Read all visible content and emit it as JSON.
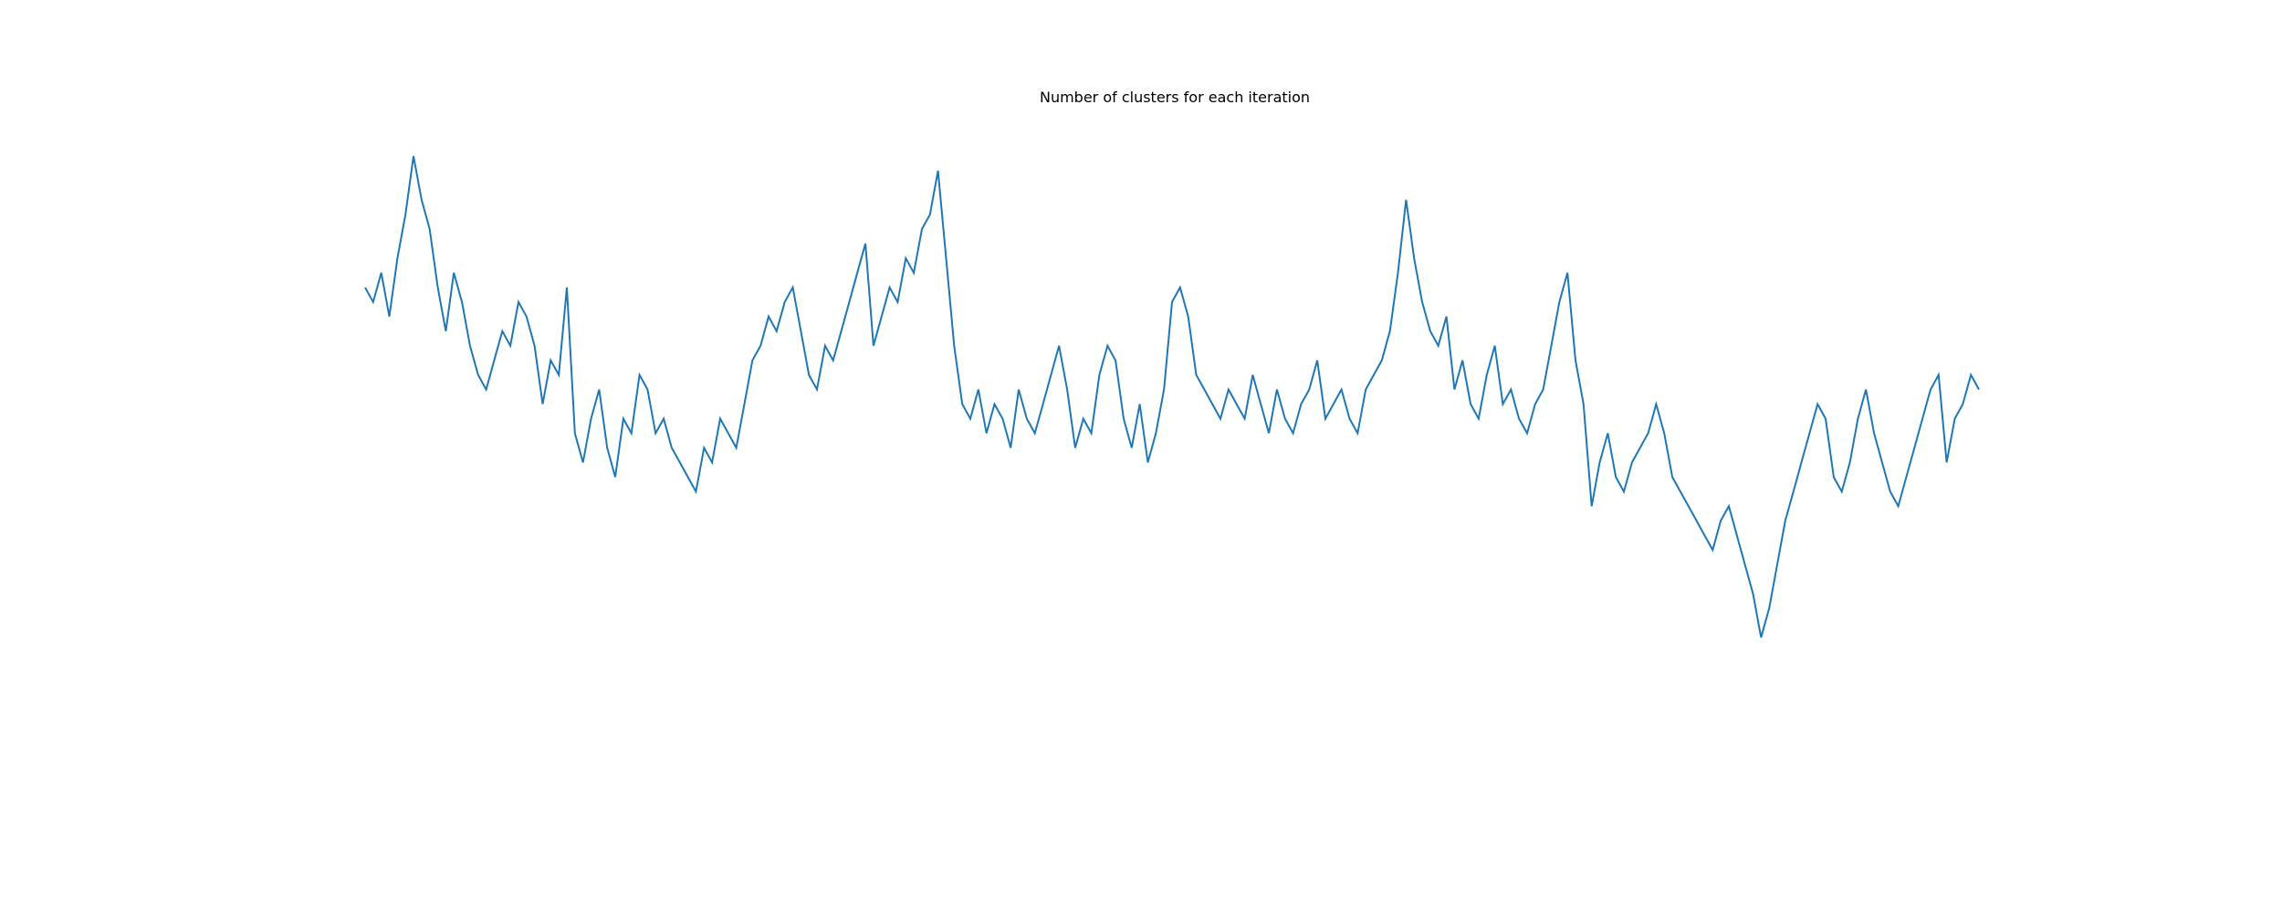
{
  "chart_data": {
    "type": "line",
    "title": "Number of clusters for each iteration",
    "xlabel": "",
    "ylabel": "",
    "axes_visible": false,
    "grid": false,
    "xlim": [
      0,
      2000
    ],
    "ylim": [
      0,
      44
    ],
    "series": [
      {
        "color": "#1f77b4",
        "x": [
          0,
          10,
          20,
          30,
          40,
          50,
          60,
          70,
          80,
          90,
          100,
          110,
          120,
          130,
          140,
          150,
          160,
          170,
          180,
          190,
          200,
          210,
          220,
          230,
          240,
          250,
          260,
          270,
          280,
          290,
          300,
          310,
          320,
          330,
          340,
          350,
          360,
          370,
          380,
          390,
          400,
          410,
          420,
          430,
          440,
          450,
          460,
          470,
          480,
          490,
          500,
          510,
          520,
          530,
          540,
          550,
          560,
          570,
          580,
          590,
          600,
          610,
          620,
          630,
          640,
          650,
          660,
          670,
          680,
          690,
          700,
          710,
          720,
          730,
          740,
          750,
          760,
          770,
          780,
          790,
          800,
          810,
          820,
          830,
          840,
          850,
          860,
          870,
          880,
          890,
          900,
          910,
          920,
          930,
          940,
          950,
          960,
          970,
          980,
          990,
          1000,
          1010,
          1020,
          1030,
          1040,
          1050,
          1060,
          1070,
          1080,
          1090,
          1100,
          1110,
          1120,
          1130,
          1140,
          1150,
          1160,
          1170,
          1180,
          1190,
          1200,
          1210,
          1220,
          1230,
          1240,
          1250,
          1260,
          1270,
          1280,
          1290,
          1300,
          1310,
          1320,
          1330,
          1340,
          1350,
          1360,
          1370,
          1380,
          1390,
          1400,
          1410,
          1420,
          1430,
          1440,
          1450,
          1460,
          1470,
          1480,
          1490,
          1500,
          1510,
          1520,
          1530,
          1540,
          1550,
          1560,
          1570,
          1580,
          1590,
          1600,
          1610,
          1620,
          1630,
          1640,
          1650,
          1660,
          1670,
          1680,
          1690,
          1700,
          1710,
          1720,
          1730,
          1740,
          1750,
          1760,
          1770,
          1780,
          1790,
          1800,
          1810,
          1820,
          1830,
          1840,
          1850,
          1860,
          1870,
          1880,
          1890,
          1900,
          1910,
          1920,
          1930,
          1940,
          1950,
          1960,
          1970,
          1980,
          1990,
          2000
        ],
        "y": [
          34,
          33,
          35,
          32,
          36,
          39,
          43,
          40,
          38,
          34,
          31,
          35,
          33,
          30,
          28,
          27,
          29,
          31,
          30,
          33,
          32,
          30,
          26,
          29,
          28,
          34,
          24,
          22,
          25,
          27,
          23,
          21,
          25,
          24,
          28,
          27,
          24,
          25,
          23,
          22,
          21,
          20,
          23,
          22,
          25,
          24,
          23,
          26,
          29,
          30,
          32,
          31,
          33,
          34,
          31,
          28,
          27,
          30,
          29,
          31,
          33,
          35,
          37,
          30,
          32,
          34,
          33,
          36,
          35,
          38,
          39,
          42,
          36,
          30,
          26,
          25,
          27,
          24,
          26,
          25,
          23,
          27,
          25,
          24,
          26,
          28,
          30,
          27,
          23,
          25,
          24,
          28,
          30,
          29,
          25,
          23,
          26,
          22,
          24,
          27,
          33,
          34,
          32,
          28,
          27,
          26,
          25,
          27,
          26,
          25,
          28,
          26,
          24,
          27,
          25,
          24,
          26,
          27,
          29,
          25,
          26,
          27,
          25,
          24,
          27,
          28,
          29,
          31,
          35,
          40,
          36,
          33,
          31,
          30,
          32,
          27,
          29,
          26,
          25,
          28,
          30,
          26,
          27,
          25,
          24,
          26,
          27,
          30,
          33,
          35,
          29,
          26,
          19,
          22,
          24,
          21,
          20,
          22,
          23,
          24,
          26,
          24,
          21,
          20,
          19,
          18,
          17,
          16,
          18,
          19,
          17,
          15,
          13,
          10,
          12,
          15,
          18,
          20,
          22,
          24,
          26,
          25,
          21,
          20,
          22,
          25,
          27,
          24,
          22,
          20,
          19,
          21,
          23,
          25,
          27,
          28,
          22,
          25,
          26,
          28,
          27
        ]
      }
    ]
  }
}
